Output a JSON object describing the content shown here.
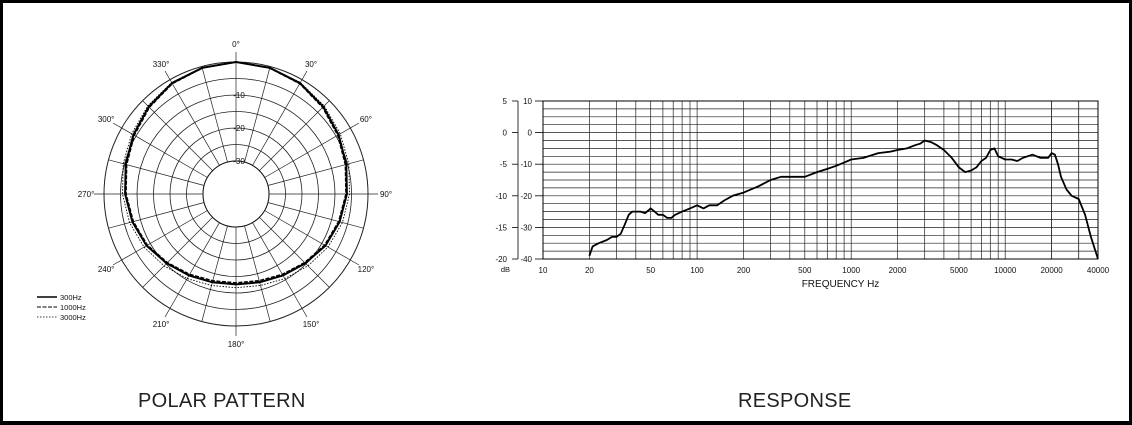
{
  "chart_data": [
    {
      "type": "polar",
      "caption": "POLAR PATTERN",
      "angle_labels": [
        "0°",
        "30°",
        "60°",
        "90°",
        "120°",
        "150°",
        "180°",
        "210°",
        "240°",
        "270°",
        "300°",
        "330°"
      ],
      "ring_labels": [
        "-10",
        "-20",
        "-30"
      ],
      "rings_db": [
        0,
        -5,
        -10,
        -15,
        -20,
        -25,
        -30
      ],
      "rlim_db": [
        -40,
        0
      ],
      "legend_position": "bottom-left",
      "series": [
        {
          "name": "300Hz",
          "style": "solid",
          "angles_deg": [
            0,
            15,
            30,
            45,
            60,
            75,
            90,
            105,
            120,
            135,
            150,
            165,
            180,
            195,
            210,
            225,
            240,
            255,
            270,
            285,
            300,
            315,
            330,
            345
          ],
          "values_db": [
            0,
            -0.4,
            -1.2,
            -2.6,
            -4.1,
            -5.4,
            -6.4,
            -7.5,
            -8.7,
            -10.3,
            -11.5,
            -12.3,
            -12.6,
            -12.3,
            -11.5,
            -10.3,
            -8.7,
            -7.5,
            -6.4,
            -5.4,
            -4.1,
            -2.6,
            -1.2,
            -0.4
          ]
        },
        {
          "name": "1000Hz",
          "style": "dashed",
          "angles_deg": [
            0,
            15,
            30,
            45,
            60,
            75,
            90,
            105,
            120,
            135,
            150,
            165,
            180,
            195,
            210,
            225,
            240,
            255,
            270,
            285,
            300,
            315,
            330,
            345
          ],
          "values_db": [
            0,
            -0.5,
            -1.4,
            -2.9,
            -4.4,
            -5.7,
            -6.7,
            -7.8,
            -9.0,
            -10.6,
            -11.9,
            -12.8,
            -13.1,
            -12.8,
            -11.9,
            -10.6,
            -9.0,
            -7.8,
            -6.7,
            -5.7,
            -4.4,
            -2.9,
            -1.4,
            -0.5
          ]
        },
        {
          "name": "3000Hz",
          "style": "dotted",
          "angles_deg": [
            0,
            15,
            30,
            45,
            60,
            75,
            90,
            105,
            120,
            135,
            150,
            165,
            180,
            195,
            210,
            225,
            240,
            255,
            270,
            285,
            300,
            315,
            330,
            345
          ],
          "values_db": [
            0,
            -0.3,
            -1.0,
            -2.2,
            -3.5,
            -4.6,
            -5.6,
            -6.6,
            -7.8,
            -9.2,
            -10.4,
            -11.3,
            -11.6,
            -11.3,
            -10.4,
            -9.2,
            -7.8,
            -6.6,
            -5.6,
            -4.6,
            -3.5,
            -2.2,
            -1.0,
            -0.3
          ]
        }
      ]
    },
    {
      "type": "line",
      "caption": "RESPONSE",
      "xlabel": "FREQUENCY Hz",
      "x_scale": "log",
      "xlim": [
        10,
        40000
      ],
      "x_ticks": [
        10,
        20,
        50,
        100,
        200,
        500,
        1000,
        2000,
        5000,
        10000,
        20000,
        40000
      ],
      "x_tick_labels": [
        "10",
        "20",
        "50",
        "100",
        "200",
        "500",
        "1000",
        "2000",
        "5000",
        "10000",
        "20000",
        "40000"
      ],
      "ylim": [
        -40,
        10
      ],
      "y_ticks_inner": [
        10,
        0,
        -10,
        -20,
        -30,
        -40
      ],
      "y_tick_labels_inner": [
        "10",
        "0",
        "-10",
        "-20",
        "-30",
        "-40"
      ],
      "y_ticks_outer": [
        5,
        0,
        -5,
        -10,
        -15,
        -20
      ],
      "y_tick_labels_outer": [
        "5",
        "0",
        "-5",
        "-10",
        "-15",
        "-20"
      ],
      "y_unit_label": "dB",
      "grid": true,
      "series": [
        {
          "x": [
            20,
            21,
            23,
            26,
            28,
            30,
            32,
            34,
            36,
            38,
            40,
            43,
            46,
            50,
            53,
            56,
            60,
            64,
            68,
            72,
            76,
            80,
            90,
            100,
            110,
            120,
            135,
            150,
            170,
            200,
            250,
            300,
            350,
            400,
            500,
            600,
            700,
            800,
            900,
            1000,
            1200,
            1500,
            1800,
            2000,
            2300,
            2600,
            2800,
            3000,
            3300,
            3600,
            4000,
            4500,
            5000,
            5500,
            6000,
            6500,
            7000,
            7500,
            8000,
            8500,
            9000,
            9500,
            10000,
            11000,
            12000,
            13000,
            15000,
            17000,
            19000,
            20000,
            21000,
            22000,
            23000,
            25000,
            27000,
            30000,
            33000,
            36000,
            40000
          ],
          "y": [
            -39,
            -36,
            -35,
            -34,
            -33,
            -33,
            -32,
            -29,
            -26,
            -25,
            -25,
            -25,
            -25.5,
            -24,
            -25,
            -26,
            -26,
            -27,
            -27,
            -26,
            -25.5,
            -25,
            -24,
            -23,
            -24,
            -23,
            -23,
            -21.5,
            -20,
            -19,
            -17,
            -15,
            -14,
            -14,
            -14,
            -12.5,
            -11.5,
            -10.5,
            -9.5,
            -8.5,
            -8,
            -6.5,
            -6,
            -5.5,
            -5,
            -4,
            -3.5,
            -2.5,
            -3,
            -4,
            -5.5,
            -8,
            -11,
            -12.5,
            -12,
            -11,
            -9,
            -8,
            -5.5,
            -5,
            -7.5,
            -8,
            -8.5,
            -8.5,
            -9,
            -8,
            -7,
            -8,
            -8,
            -6.5,
            -7,
            -10,
            -14,
            -18,
            -20,
            -21,
            -26,
            -33,
            -40
          ]
        }
      ]
    }
  ]
}
